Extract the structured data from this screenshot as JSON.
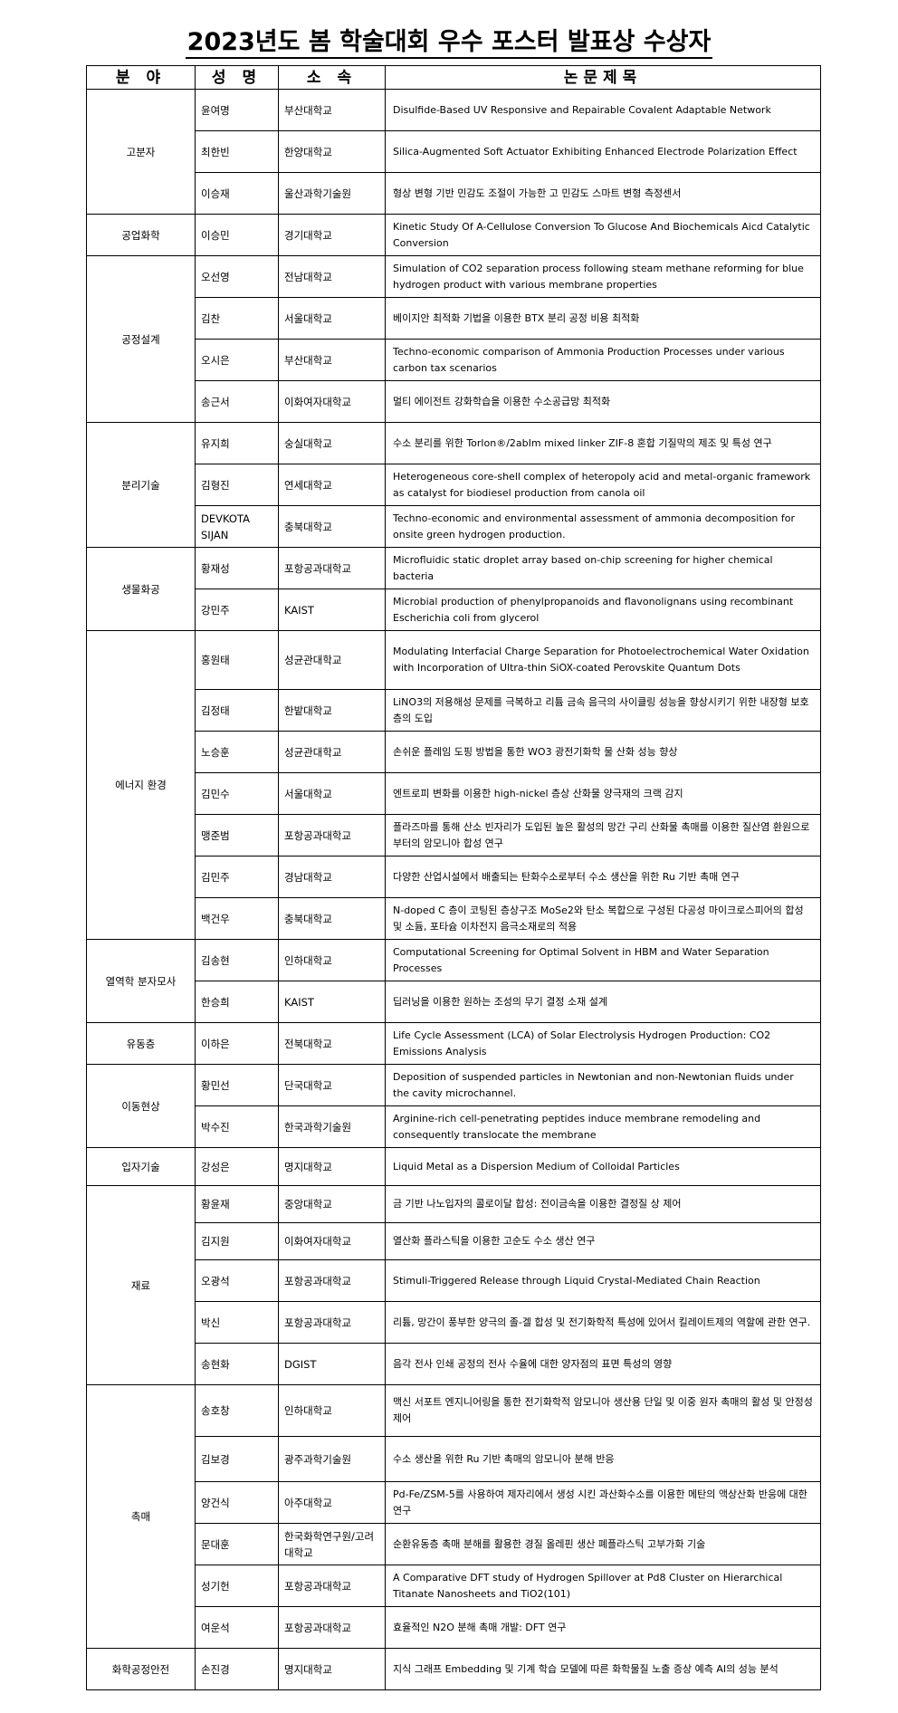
{
  "title": "2023년도 봄 학술대회 우수 포스터 발표상 수상자",
  "headers": [
    "분 야",
    "성 명",
    "소 속",
    "논문제목"
  ],
  "groups": [
    {
      "category": "고분자",
      "rows": [
        {
          "name": "윤여명",
          "affiliation": "부산대학교",
          "paper": "Disulfide-Based UV Responsive and Repairable Covalent Adaptable Network"
        },
        {
          "name": "최한빈",
          "affiliation": "한양대학교",
          "paper": "Silica-Augmented Soft Actuator Exhibiting Enhanced Electrode Polarization Effect"
        },
        {
          "name": "이승재",
          "affiliation": "울산과학기술원",
          "paper": "형상 변형 기반 민감도 조절이 가능한 고 민감도 스마트 변형 측정센서"
        }
      ]
    },
    {
      "category": "공업화학",
      "rows": [
        {
          "name": "이승민",
          "affiliation": "경기대학교",
          "paper": "Kinetic Study Of A-Cellulose Conversion To Glucose And Biochemicals Aicd Catalytic Conversion"
        }
      ]
    },
    {
      "category": "공정설계",
      "rows": [
        {
          "name": "오선영",
          "affiliation": "전남대학교",
          "paper": "Simulation of CO2 separation process following steam methane reforming for blue hydrogen product with various membrane properties"
        },
        {
          "name": "김찬",
          "affiliation": "서울대학교",
          "paper": "베이지안 최적화 기법을 이용한 BTX 분리 공정 비용 최적화"
        },
        {
          "name": "오시은",
          "affiliation": "부산대학교",
          "paper": "Techno-economic comparison of Ammonia Production Processes under various carbon tax scenarios"
        },
        {
          "name": "송근서",
          "affiliation": "이화여자대학교",
          "paper": "멀티 에이전트 강화학습을 이용한 수소공급망 최적화"
        }
      ]
    },
    {
      "category": "분리기술",
      "rows": [
        {
          "name": "유지희",
          "affiliation": "숭실대학교",
          "paper": "수소 분리를 위한 Torlon®/2abIm mixed linker ZIF-8 혼합 기질막의 제조 및 특성 연구"
        },
        {
          "name": "김형진",
          "affiliation": "연세대학교",
          "paper": "Heterogeneous core-shell complex of heteropoly acid and metal-organic framework as catalyst for biodiesel production from canola oil"
        },
        {
          "name": "DEVKOTA SIJAN",
          "affiliation": "충북대학교",
          "paper": "Techno-economic and environmental assessment of ammonia decomposition for onsite green hydrogen production."
        }
      ]
    },
    {
      "category": "생물화공",
      "rows": [
        {
          "name": "황재성",
          "affiliation": "포항공과대학교",
          "paper": "Microfluidic static droplet array based on-chip screening for higher chemical bacteria"
        },
        {
          "name": "강민주",
          "affiliation": "KAIST",
          "paper": "Microbial production of phenylpropanoids and flavonolignans using recombinant Escherichia coli from glycerol"
        }
      ]
    },
    {
      "category": "에너지 환경",
      "rows": [
        {
          "name": "홍원태",
          "affiliation": "성균관대학교",
          "paper": "Modulating Interfacial Charge Separation for Photoelectrochemical Water Oxidation with Incorporation of Ultra-thin SiOX-coated Perovskite Quantum Dots"
        },
        {
          "name": "김정태",
          "affiliation": "한밭대학교",
          "paper": "LiNO3의 저용해성 문제를 극복하고 리튬 금속 음극의 사이클링 성능을 향상시키기 위한 내장형 보호층의 도입"
        },
        {
          "name": "노승훈",
          "affiliation": "성균관대학교",
          "paper": "손쉬운 플레임 도핑 방법을 통한 WO3 광전기화학 물 산화 성능 향상"
        },
        {
          "name": "김민수",
          "affiliation": "서울대학교",
          "paper": "엔트로피 변화를 이용한 high-nickel 층상 산화물 양극재의 크랙 감지"
        },
        {
          "name": "맹준범",
          "affiliation": "포항공과대학교",
          "paper": "플라즈마를 통해 산소 빈자리가 도입된 높은 활성의 망간 구리 산화물 촉매를 이용한 질산염 환원으로부터의 암모니아 합성 연구"
        },
        {
          "name": "김민주",
          "affiliation": "경남대학교",
          "paper": "다양한 산업시설에서 배출되는 탄화수소로부터 수소 생산을 위한 Ru 기반 촉매 연구"
        },
        {
          "name": "백건우",
          "affiliation": "충북대학교",
          "paper": "N-doped C 층이 코팅된 층상구조 MoSe2와 탄소 복합으로 구성된 다공성 마이크로스피어의 합성 및 소듐, 포타슘 이차전지 음극소재로의 적용"
        }
      ]
    },
    {
      "category": "열역학 분자모사",
      "rows": [
        {
          "name": "김송현",
          "affiliation": "인하대학교",
          "paper": "Computational Screening for Optimal Solvent in HBM and Water Separation Processes"
        },
        {
          "name": "한승희",
          "affiliation": "KAIST",
          "paper": "딥러닝을 이용한 원하는 조성의 무기 결정 소재 설계"
        }
      ]
    },
    {
      "category": "유동층",
      "rows": [
        {
          "name": "이하은",
          "affiliation": "전북대학교",
          "paper": "Life Cycle Assessment (LCA) of Solar Electrolysis Hydrogen Production: CO2 Emissions Analysis"
        }
      ]
    },
    {
      "category": "이동현상",
      "rows": [
        {
          "name": "황민선",
          "affiliation": "단국대학교",
          "paper": "Deposition of suspended particles in Newtonian and non-Newtonian fluids under the cavity microchannel."
        },
        {
          "name": "박수진",
          "affiliation": "한국과학기술원",
          "paper": "Arginine-rich cell-penetrating peptides induce membrane remodeling and consequently translocate the membrane"
        }
      ]
    },
    {
      "category": "입자기술",
      "rows": [
        {
          "name": "강성은",
          "affiliation": "명지대학교",
          "paper": "Liquid Metal as a Dispersion Medium of Colloidal Particles"
        }
      ]
    },
    {
      "category": "재료",
      "rows": [
        {
          "name": "황윤재",
          "affiliation": "중앙대학교",
          "paper": "금 기반 나노입자의 콜로이달 합성: 전이금속을 이용한 결정질 상 제어"
        },
        {
          "name": "김지원",
          "affiliation": "이화여자대학교",
          "paper": "열산화 플라스틱을 이용한 고순도 수소 생산 연구"
        },
        {
          "name": "오광석",
          "affiliation": "포항공과대학교",
          "paper": "Stimuli-Triggered Release through Liquid Crystal-Mediated Chain Reaction"
        },
        {
          "name": "박신",
          "affiliation": "포항공과대학교",
          "paper": "리튬, 망간이 풍부한 양극의 졸-겔 합성 및 전기화학적 특성에 있어서 킬레이트제의 역할에 관한 연구."
        },
        {
          "name": "송현화",
          "affiliation": "DGIST",
          "paper": "음각 전사 인쇄 공정의 전사 수율에 대한 양자점의 표면 특성의 영향"
        }
      ]
    },
    {
      "category": "촉매",
      "rows": [
        {
          "name": "송호창",
          "affiliation": "인하대학교",
          "paper": "맥신 서포트 엔지니어링을 통한 전기화학적 암모니아 생산용 단일 및 이중 원자 촉매의 활성 및 안정성 제어"
        },
        {
          "name": "김보경",
          "affiliation": "광주과학기술원",
          "paper": "수소 생산을 위한 Ru 기반 촉매의 암모니아 분해 반응"
        },
        {
          "name": "양건식",
          "affiliation": "아주대학교",
          "paper": "Pd-Fe/ZSM-5를 사용하여 제자리에서 생성 시킨 과산화수소를 이용한 메탄의 액상산화 반응에 대한 연구"
        },
        {
          "name": "문대훈",
          "affiliation": "한국화학연구원/고려대학교",
          "paper": "순환유동층 촉매 분해를 활용한 경질 올레핀 생산 폐플라스틱 고부가화 기술"
        },
        {
          "name": "성기헌",
          "affiliation": "포항공과대학교",
          "paper": "A Comparative DFT study of Hydrogen Spillover at Pd8 Cluster on Hierarchical Titanate Nanosheets and TiO2(101)"
        },
        {
          "name": "여운석",
          "affiliation": "포항공과대학교",
          "paper": "효율적인 N2O 분해 촉매 개발: DFT 연구"
        }
      ]
    },
    {
      "category": "화학공정안전",
      "rows": [
        {
          "name": "손진경",
          "affiliation": "명지대학교",
          "paper": "지식 그래프 Embedding 및 기계 학습 모델에 따른 화학물질 노출 증상 예측 AI의 성능 분석"
        }
      ]
    }
  ]
}
